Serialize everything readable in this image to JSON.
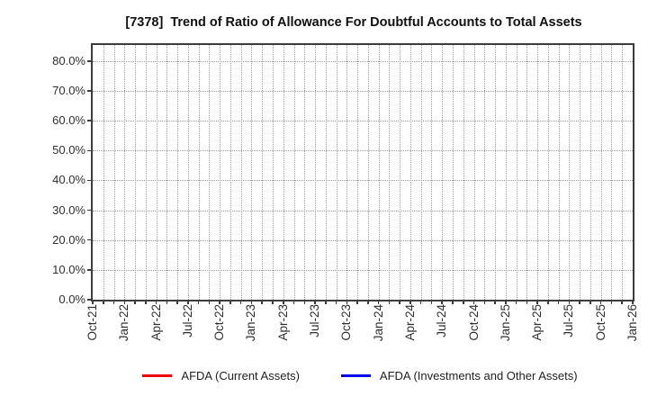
{
  "chart_data": {
    "type": "line",
    "title": "[7378]  Trend of Ratio of Allowance For Doubtful Accounts to Total Assets",
    "xlabel": "",
    "ylabel": "",
    "x_tick_labels": [
      "Oct-21",
      "Jan-22",
      "Apr-22",
      "Jul-22",
      "Oct-22",
      "Jan-23",
      "Apr-23",
      "Jul-23",
      "Oct-23",
      "Jan-24",
      "Apr-24",
      "Jul-24",
      "Oct-24",
      "Jan-25",
      "Apr-25",
      "Jul-25",
      "Oct-25",
      "Jan-26"
    ],
    "x_tick_interval_months": 3,
    "x_axis_months_total": 51,
    "y_tick_labels": [
      "0.0%",
      "10.0%",
      "20.0%",
      "30.0%",
      "40.0%",
      "50.0%",
      "60.0%",
      "70.0%",
      "80.0%"
    ],
    "y_tick_step_percent": 10,
    "ylim": [
      0,
      85.4
    ],
    "grid": "dotted",
    "grid_minor_x": "monthly",
    "legend_position": "bottom-center",
    "series": [
      {
        "name": "AFDA (Current Assets)",
        "color": "#ee0000",
        "values": []
      },
      {
        "name": "AFDA (Investments and Other Assets)",
        "color": "#0000ee",
        "values": []
      }
    ]
  },
  "colors": {
    "background": "#ffffff",
    "grid": "#9a9a9a",
    "axis_border": "#3d3d3d",
    "tick_text": "#303030",
    "title_text": "#111111"
  }
}
